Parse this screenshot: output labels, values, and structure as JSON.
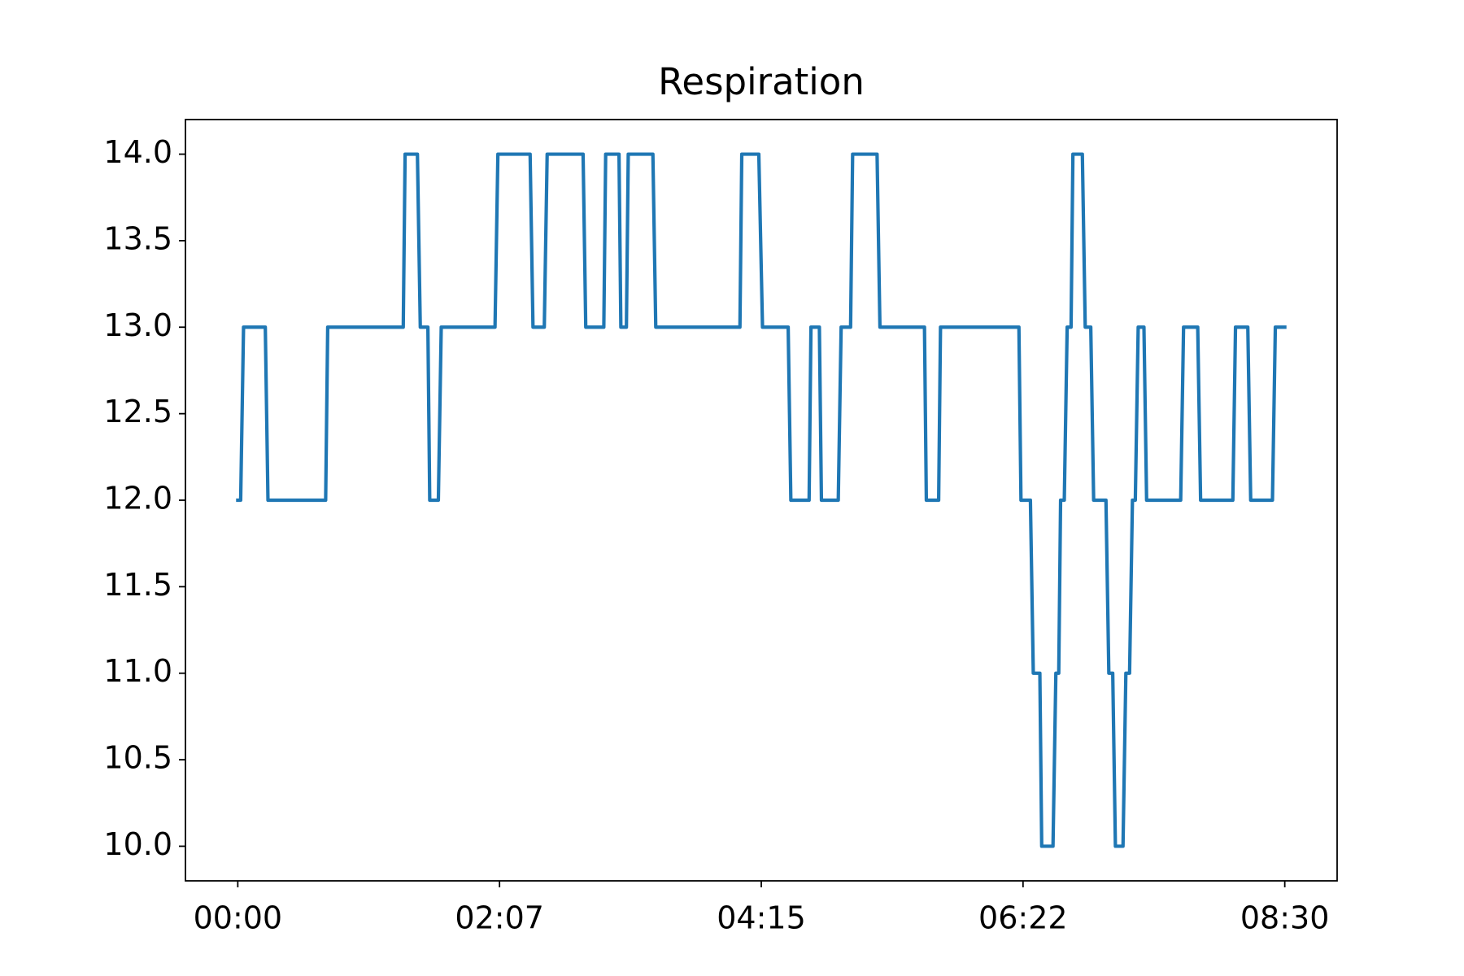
{
  "chart_data": {
    "type": "line",
    "title": "Respiration",
    "x": [
      0,
      1.4,
      2.8,
      13.4,
      14.7,
      42.8,
      43.8,
      80.6,
      81.5,
      87.5,
      88.9,
      92.6,
      93.5,
      97.7,
      99.1,
      125.3,
      126.7,
      142.4,
      143.8,
      149.3,
      150.7,
      168.2,
      169.5,
      178.3,
      179.2,
      185.7,
      186.6,
      189.3,
      190.2,
      202.2,
      203.6,
      244.6,
      245.5,
      253.8,
      255.6,
      268.1,
      269.4,
      278.3,
      279.2,
      283.3,
      284.3,
      292.5,
      293.9,
      298.5,
      299.5,
      311.4,
      312.8,
      334.5,
      335.4,
      341.4,
      342.3,
      380.5,
      381.5,
      386.1,
      387.5,
      390.7,
      391.6,
      397.1,
      398.5,
      399.9,
      400.8,
      402.6,
      404.0,
      405.9,
      406.8,
      411.4,
      412.8,
      415.5,
      416.9,
      422.9,
      424.3,
      426.2,
      427.5,
      431.2,
      432.6,
      434.4,
      435.8,
      437.2,
      438.6,
      441.4,
      442.7,
      459.3,
      460.7,
      467.6,
      469.0,
      484.7,
      486.0,
      492.0,
      493.4,
      504.0,
      505.4,
      510
    ],
    "values": [
      12,
      12,
      13,
      13,
      12,
      12,
      13,
      13,
      14,
      14,
      13,
      13,
      12,
      12,
      13,
      13,
      14,
      14,
      13,
      13,
      14,
      14,
      13,
      13,
      14,
      14,
      13,
      13,
      14,
      14,
      13,
      13,
      14,
      14,
      13,
      13,
      12,
      12,
      13,
      13,
      12,
      12,
      13,
      13,
      14,
      14,
      13,
      13,
      12,
      12,
      13,
      13,
      12,
      12,
      11,
      11,
      10,
      10,
      11,
      11,
      12,
      12,
      13,
      13,
      14,
      14,
      13,
      13,
      12,
      12,
      11,
      11,
      10,
      10,
      11,
      11,
      12,
      12,
      13,
      13,
      12,
      12,
      13,
      13,
      12,
      12,
      13,
      13,
      12,
      12,
      13,
      13
    ],
    "color": "#1f77b4",
    "xlim": [
      -25.5,
      535.5
    ],
    "xticks": [
      {
        "value": 0,
        "label": "00:00"
      },
      {
        "value": 127.5,
        "label": "02:07"
      },
      {
        "value": 255,
        "label": "04:15"
      },
      {
        "value": 382.5,
        "label": "06:22"
      },
      {
        "value": 510,
        "label": "08:30"
      }
    ],
    "ylim": [
      9.8,
      14.2
    ],
    "yticks": [
      {
        "value": 10,
        "label": "10.0"
      },
      10.5,
      {
        "value": 11,
        "label": "11.0"
      },
      11.5,
      {
        "value": 12,
        "label": "12.0"
      },
      12.5,
      {
        "value": 13,
        "label": "13.0"
      },
      13.5,
      {
        "value": 14,
        "label": "14.0"
      }
    ],
    "grid": false
  }
}
